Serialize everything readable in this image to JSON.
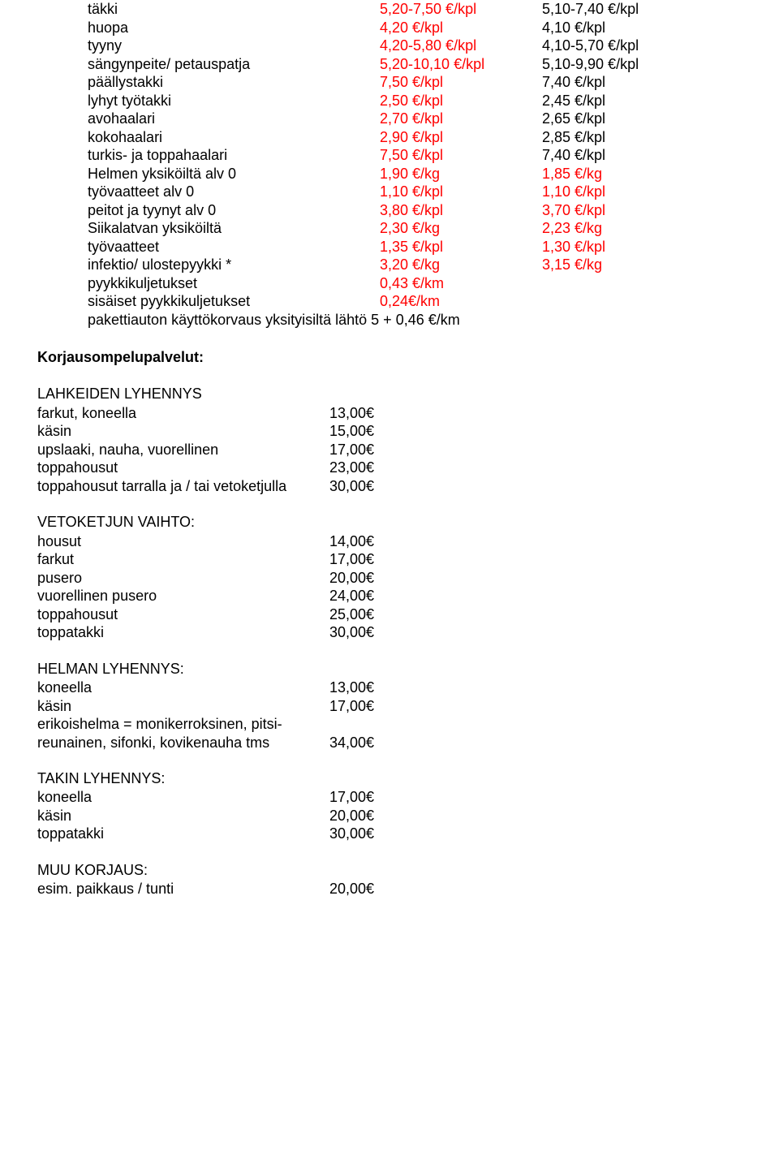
{
  "table1": {
    "rows": [
      {
        "label": "täkki",
        "v1": "5,20-7,50 €/kpl",
        "v2": "5,10-7,40 €/kpl",
        "red1": true,
        "red2": false
      },
      {
        "label": "huopa",
        "v1": "4,20 €/kpl",
        "v2": "4,10 €/kpl",
        "red1": true,
        "red2": false
      },
      {
        "label": "tyyny",
        "v1": "4,20-5,80 €/kpl",
        "v2": "4,10-5,70 €/kpl",
        "red1": true,
        "red2": false
      },
      {
        "label": "sängynpeite/ petauspatja",
        "v1": "5,20-10,10 €/kpl",
        "v2": "5,10-9,90 €/kpl",
        "red1": true,
        "red2": false
      },
      {
        "label": "päällystakki",
        "v1": "7,50 €/kpl",
        "v2": "7,40 €/kpl",
        "red1": true,
        "red2": false
      },
      {
        "label": "lyhyt työtakki",
        "v1": "2,50 €/kpl",
        "v2": "2,45 €/kpl",
        "red1": true,
        "red2": false
      },
      {
        "label": "avohaalari",
        "v1": "2,70 €/kpl",
        "v2": "2,65 €/kpl",
        "red1": true,
        "red2": false
      },
      {
        "label": "kokohaalari",
        "v1": "2,90 €/kpl",
        "v2": "2,85 €/kpl",
        "red1": true,
        "red2": false
      },
      {
        "label": "turkis- ja toppahaalari",
        "v1": "7,50 €/kpl",
        "v2": "7,40 €/kpl",
        "red1": true,
        "red2": false
      },
      {
        "label": "Helmen yksiköiltä alv 0",
        "v1": "1,90 €/kg",
        "v2": "1,85 €/kg",
        "red1": true,
        "red2": true
      },
      {
        "label": "työvaatteet alv 0",
        "v1": "1,10 €/kpl",
        "v2": "1,10 €/kpl",
        "red1": true,
        "red2": true
      },
      {
        "label": "peitot ja tyynyt alv 0",
        "v1": "3,80 €/kpl",
        "v2": "3,70 €/kpl",
        "red1": true,
        "red2": true
      },
      {
        "label": "Siikalatvan yksiköiltä",
        "v1": "2,30 €/kg",
        "v2": "2,23 €/kg",
        "red1": true,
        "red2": true
      },
      {
        "label": "työvaatteet",
        "v1": "1,35 €/kpl",
        "v2": "1,30 €/kpl",
        "red1": true,
        "red2": true
      },
      {
        "label": "infektio/ ulostepyykki *",
        "v1": "3,20 €/kg",
        "v2": "3,15 €/kg",
        "red1": true,
        "red2": true
      },
      {
        "label": "pyykkikuljetukset",
        "v1": "0,43 €/km",
        "v2": "",
        "red1": true,
        "red2": false
      },
      {
        "label": "sisäiset pyykkikuljetukset",
        "v1": "0,24€/km",
        "v2": "",
        "red1": true,
        "red2": false
      }
    ],
    "footer": "pakettiauton käyttökorvaus yksityisiltä lähtö 5 + 0,46 €/km"
  },
  "korjaus_title": "Korjausompelupalvelut:",
  "sections": [
    {
      "title": "LAHKEIDEN LYHENNYS",
      "rows": [
        {
          "label": "farkut, koneella",
          "val": "13,00€"
        },
        {
          "label": "käsin",
          "val": "15,00€"
        },
        {
          "label": "upslaaki, nauha, vuorellinen",
          "val": "17,00€"
        },
        {
          "label": "toppahousut",
          "val": "23,00€"
        },
        {
          "label": "toppahousut tarralla ja / tai vetoketjulla",
          "val": "30,00€"
        }
      ]
    },
    {
      "title": "VETOKETJUN VAIHTO:",
      "rows": [
        {
          "label": "housut",
          "val": "14,00€"
        },
        {
          "label": "farkut",
          "val": "17,00€"
        },
        {
          "label": "pusero",
          "val": "20,00€"
        },
        {
          "label": "vuorellinen pusero",
          "val": "24,00€"
        },
        {
          "label": "toppahousut",
          "val": "25,00€"
        },
        {
          "label": "toppatakki",
          "val": "30,00€"
        }
      ]
    },
    {
      "title": "HELMAN LYHENNYS:",
      "rows": [
        {
          "label": "koneella",
          "val": "13,00€"
        },
        {
          "label": "käsin",
          "val": "17,00€"
        },
        {
          "label": "erikoishelma = monikerroksinen, pitsi-",
          "val": ""
        },
        {
          "label": "reunainen, sifonki, kovikenauha tms",
          "val": "34,00€"
        }
      ]
    },
    {
      "title": "TAKIN LYHENNYS:",
      "rows": [
        {
          "label": "koneella",
          "val": "17,00€"
        },
        {
          "label": "käsin",
          "val": "20,00€"
        },
        {
          "label": "toppatakki",
          "val": "30,00€"
        }
      ]
    },
    {
      "title": "MUU KORJAUS:",
      "rows": [
        {
          "label": "esim. paikkaus / tunti",
          "val": "20,00€"
        }
      ]
    }
  ]
}
